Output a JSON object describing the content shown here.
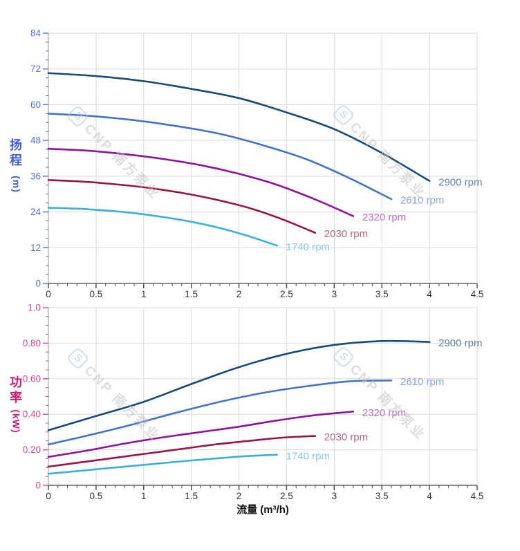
{
  "watermark": {
    "logo_letter": "S",
    "text": "CNP 南方泵业"
  },
  "axes": {
    "flow_title": "流量 (m³/h)",
    "head_title_chars": [
      "扬",
      "程"
    ],
    "head_unit": "(m)",
    "power_title_chars": [
      "功",
      "率"
    ],
    "power_unit": "(kW)"
  },
  "colors": {
    "background": "#ffffff",
    "grid": "#d9d9d9",
    "x_axis_line": "#444444",
    "y_axis_line": "#999999",
    "x_label": "#333333",
    "head_axis_accent": "#5273dd",
    "power_axis_accent": "#e0458c"
  },
  "chart_data": [
    {
      "name": "head-vs-flow",
      "type": "line",
      "title": "",
      "xlabel": "流量 (m³/h)",
      "ylabel": "扬程 (m)",
      "xlim": [
        0,
        4.5
      ],
      "ylim": [
        0,
        84
      ],
      "grid": true,
      "x_minor": 0.1,
      "y_minor": 3,
      "x_tick_values": [
        0,
        0.5,
        1,
        1.5,
        2,
        2.5,
        3,
        3.5,
        4,
        4.5
      ],
      "x_tick_labels": [
        "0",
        "0.5",
        "1",
        "1.5",
        "2",
        "2.5",
        "3",
        "3.5",
        "4",
        "4.5"
      ],
      "y_tick_values": [
        0,
        12,
        24,
        36,
        48,
        60,
        72,
        84
      ],
      "y_tick_labels": [
        "0",
        "12",
        "24",
        "36",
        "48",
        "60",
        "72",
        "84"
      ],
      "axis_color": "#5273dd",
      "legend_position": "right-of-curve-end",
      "series": [
        {
          "label": "2900 rpm",
          "color": "#17497a",
          "label_color": "#64819f",
          "x": [
            0,
            0.5,
            1,
            1.5,
            2,
            2.5,
            3,
            3.5,
            4
          ],
          "y": [
            70.6,
            69.6,
            67.9,
            65.3,
            62.2,
            57.4,
            51.8,
            43.8,
            34.4
          ]
        },
        {
          "label": "2610 rpm",
          "color": "#4273c8",
          "label_color": "#87a4dc",
          "x": [
            0,
            0.45,
            0.9,
            1.35,
            1.8,
            2.25,
            2.7,
            3.15,
            3.6
          ],
          "y": [
            57.0,
            56.2,
            54.8,
            52.8,
            50.2,
            46.4,
            41.8,
            35.5,
            28.3
          ]
        },
        {
          "label": "2320 rpm",
          "color": "#8e129b",
          "label_color": "#c06cc0",
          "x": [
            0,
            0.4,
            0.8,
            1.2,
            1.6,
            2,
            2.4,
            2.8,
            3.2
          ],
          "y": [
            45.2,
            44.6,
            43.4,
            41.8,
            39.7,
            36.8,
            33.1,
            28.2,
            22.6
          ]
        },
        {
          "label": "2030 rpm",
          "color": "#9c1340",
          "label_color": "#b26579",
          "x": [
            0,
            0.35,
            0.7,
            1.05,
            1.4,
            1.75,
            2.1,
            2.45,
            2.8
          ],
          "y": [
            34.7,
            34.2,
            33.3,
            32.1,
            30.4,
            28.2,
            25.4,
            21.6,
            17.0
          ]
        },
        {
          "label": "1740 rpm",
          "color": "#3aaede",
          "label_color": "#8cc6ea",
          "x": [
            0,
            0.3,
            0.6,
            0.9,
            1.2,
            1.5,
            1.8,
            2.1,
            2.4
          ],
          "y": [
            25.4,
            25.1,
            24.5,
            23.6,
            22.3,
            20.7,
            18.6,
            15.9,
            12.7
          ]
        }
      ]
    },
    {
      "name": "power-vs-flow",
      "type": "line",
      "title": "",
      "xlabel": "流量 (m³/h)",
      "ylabel": "功率 (kW)",
      "xlim": [
        0,
        4.5
      ],
      "ylim": [
        0,
        1
      ],
      "grid": true,
      "x_minor": 0.1,
      "y_minor": 0.05,
      "x_tick_values": [
        0,
        0.5,
        1,
        1.5,
        2,
        2.5,
        3,
        3.5,
        4,
        4.5
      ],
      "x_tick_labels": [
        "0",
        "0.5",
        "1",
        "1.5",
        "2",
        "2.5",
        "3",
        "3.5",
        "4",
        "4.5"
      ],
      "y_tick_values": [
        0,
        0.2,
        0.4,
        0.6,
        0.8,
        1
      ],
      "y_tick_labels": [
        "0",
        "0.20",
        "0.40",
        "0.60",
        "0.80",
        "1.0"
      ],
      "axis_color": "#e0458c",
      "legend_position": "right-of-curve-end",
      "series": [
        {
          "label": "2900 rpm",
          "color": "#17497a",
          "label_color": "#64819f",
          "x": [
            0,
            0.5,
            1,
            1.5,
            2,
            2.5,
            3,
            3.5,
            4
          ],
          "y": [
            0.31,
            0.39,
            0.47,
            0.57,
            0.665,
            0.74,
            0.79,
            0.812,
            0.807
          ]
        },
        {
          "label": "2610 rpm",
          "color": "#4273c8",
          "label_color": "#87a4dc",
          "x": [
            0,
            0.45,
            0.9,
            1.35,
            1.8,
            2.25,
            2.7,
            3.15,
            3.6
          ],
          "y": [
            0.23,
            0.285,
            0.345,
            0.41,
            0.47,
            0.52,
            0.557,
            0.585,
            0.59
          ]
        },
        {
          "label": "2320 rpm",
          "color": "#8e129b",
          "label_color": "#c06cc0",
          "x": [
            0,
            0.4,
            0.8,
            1.2,
            1.6,
            2,
            2.4,
            2.8,
            3.2
          ],
          "y": [
            0.16,
            0.195,
            0.235,
            0.27,
            0.3,
            0.33,
            0.365,
            0.395,
            0.415
          ]
        },
        {
          "label": "2030 rpm",
          "color": "#9c1340",
          "label_color": "#b26579",
          "x": [
            0,
            0.35,
            0.7,
            1.05,
            1.4,
            1.75,
            2.1,
            2.45,
            2.8
          ],
          "y": [
            0.105,
            0.13,
            0.155,
            0.18,
            0.205,
            0.23,
            0.25,
            0.268,
            0.278
          ]
        },
        {
          "label": "1740 rpm",
          "color": "#3aaede",
          "label_color": "#8cc6ea",
          "x": [
            0,
            0.3,
            0.6,
            0.9,
            1.2,
            1.5,
            1.8,
            2.1,
            2.4
          ],
          "y": [
            0.065,
            0.08,
            0.095,
            0.11,
            0.125,
            0.14,
            0.153,
            0.165,
            0.172
          ]
        }
      ]
    }
  ]
}
